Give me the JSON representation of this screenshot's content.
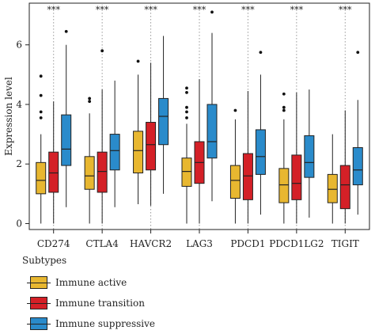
{
  "chart_data": {
    "type": "boxplot",
    "ylabel": "Expression level",
    "ylim": [
      -0.2,
      7.4
    ],
    "yticks": [
      0,
      2,
      4,
      6
    ],
    "grid": false,
    "legend_placement": "bottom-left",
    "categories": [
      "CD274",
      "CTLA4",
      "HAVCR2",
      "LAG3",
      "PDCD1",
      "PDCD1LG2",
      "TIGIT"
    ],
    "significance": [
      "***",
      "***",
      "***",
      "***",
      "***",
      "***",
      "***"
    ],
    "series": [
      {
        "name": "Immune active",
        "color": "#E8B730",
        "boxes": [
          {
            "min": 0.0,
            "q1": 1.0,
            "median": 1.45,
            "q3": 2.05,
            "max": 3.0,
            "outliers": [
              3.55,
              3.75,
              4.3,
              4.95
            ]
          },
          {
            "min": 0.0,
            "q1": 1.15,
            "median": 1.6,
            "q3": 2.25,
            "max": 3.7,
            "outliers": [
              4.1,
              4.2
            ]
          },
          {
            "min": 0.65,
            "q1": 1.7,
            "median": 2.45,
            "q3": 3.1,
            "max": 5.0,
            "outliers": [
              5.45
            ]
          },
          {
            "min": 0.0,
            "q1": 1.25,
            "median": 1.75,
            "q3": 2.2,
            "max": 3.35,
            "outliers": [
              3.55,
              3.75,
              3.9,
              4.4,
              4.55
            ]
          },
          {
            "min": 0.0,
            "q1": 0.85,
            "median": 1.45,
            "q3": 1.95,
            "max": 3.5,
            "outliers": [
              3.8
            ]
          },
          {
            "min": 0.0,
            "q1": 0.7,
            "median": 1.3,
            "q3": 1.85,
            "max": 3.5,
            "outliers": [
              3.8,
              3.9,
              4.35
            ]
          },
          {
            "min": 0.0,
            "q1": 0.7,
            "median": 1.15,
            "q3": 1.65,
            "max": 3.0,
            "outliers": []
          }
        ]
      },
      {
        "name": "Immune transition",
        "color": "#D42027",
        "boxes": [
          {
            "min": 0.0,
            "q1": 1.05,
            "median": 1.7,
            "q3": 2.4,
            "max": 4.1,
            "outliers": []
          },
          {
            "min": 0.0,
            "q1": 1.05,
            "median": 1.75,
            "q3": 2.4,
            "max": 4.5,
            "outliers": [
              5.8
            ]
          },
          {
            "min": 0.6,
            "q1": 1.8,
            "median": 2.65,
            "q3": 3.4,
            "max": 5.4,
            "outliers": []
          },
          {
            "min": 0.0,
            "q1": 1.35,
            "median": 2.05,
            "q3": 2.75,
            "max": 4.85,
            "outliers": []
          },
          {
            "min": 0.0,
            "q1": 0.8,
            "median": 1.6,
            "q3": 2.35,
            "max": 4.45,
            "outliers": []
          },
          {
            "min": 0.0,
            "q1": 0.8,
            "median": 1.35,
            "q3": 2.3,
            "max": 4.4,
            "outliers": []
          },
          {
            "min": 0.0,
            "q1": 0.5,
            "median": 1.3,
            "q3": 1.95,
            "max": 3.8,
            "outliers": []
          }
        ]
      },
      {
        "name": "Immune suppressive",
        "color": "#2A8BCB",
        "boxes": [
          {
            "min": 0.55,
            "q1": 1.95,
            "median": 2.5,
            "q3": 3.65,
            "max": 6.0,
            "outliers": [
              6.45
            ]
          },
          {
            "min": 0.55,
            "q1": 1.8,
            "median": 2.45,
            "q3": 3.0,
            "max": 4.8,
            "outliers": []
          },
          {
            "min": 1.0,
            "q1": 2.65,
            "median": 3.6,
            "q3": 4.2,
            "max": 6.3,
            "outliers": []
          },
          {
            "min": 0.75,
            "q1": 2.2,
            "median": 2.75,
            "q3": 4.0,
            "max": 6.4,
            "outliers": [
              7.1
            ]
          },
          {
            "min": 0.3,
            "q1": 1.65,
            "median": 2.25,
            "q3": 3.15,
            "max": 5.0,
            "outliers": [
              5.75
            ]
          },
          {
            "min": 0.2,
            "q1": 1.55,
            "median": 2.05,
            "q3": 2.95,
            "max": 4.5,
            "outliers": []
          },
          {
            "min": 0.3,
            "q1": 1.3,
            "median": 1.8,
            "q3": 2.55,
            "max": 4.15,
            "outliers": [
              5.75
            ]
          }
        ]
      }
    ]
  },
  "legend": {
    "title": "Subtypes",
    "items": [
      "Immune active",
      "Immune transition",
      "Immune suppressive"
    ]
  }
}
